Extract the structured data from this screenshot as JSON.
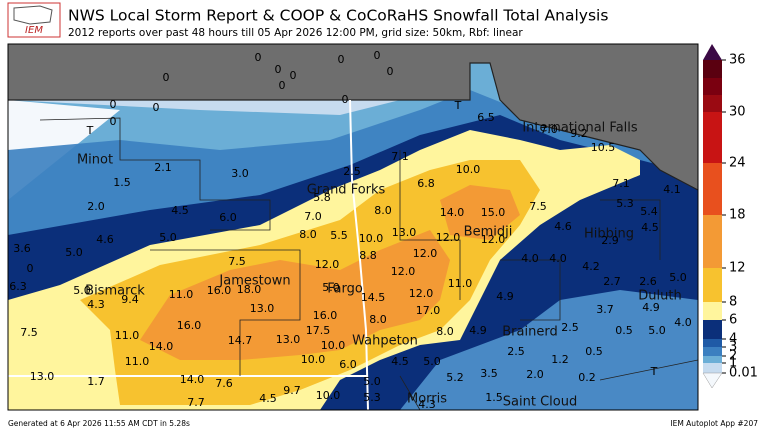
{
  "header": {
    "logo": "IEM",
    "title": "NWS Local Storm Report & COOP & CoCoRaHS Snowfall Total Analysis",
    "subtitle": "2012 reports over past 48 hours till 05 Apr 2026 12:00 PM, grid size: 50km, Rbf: linear"
  },
  "map": {
    "cities": [
      "Minot",
      "Grand Forks",
      "International Falls",
      "Bemidji",
      "Hibbing",
      "Bismarck",
      "Jamestown",
      "Fargo",
      "Duluth",
      "Wahpeton",
      "Brainerd",
      "Saint Cloud",
      "Morris"
    ],
    "stations": [
      "0",
      "0",
      "0",
      "0",
      "0",
      "0",
      "0",
      "0",
      "0",
      "0",
      "0",
      "0",
      "T",
      "T",
      "6.5",
      "7.0",
      "9.2",
      "10.5",
      "7.1",
      "10.0",
      "7.1",
      "4.1",
      "2.1",
      "1.5",
      "2.5",
      "6.8",
      "3.0",
      "5.8",
      "8.0",
      "14.0",
      "15.0",
      "7.5",
      "5.3",
      "5.4",
      "4.5",
      "4.6",
      "2.9",
      "2.0",
      "4.5",
      "6.0",
      "7.0",
      "13.0",
      "12.0",
      "12.0",
      "4.6",
      "5.0",
      "8.0",
      "5.5",
      "10.0",
      "3.6",
      "5.0",
      "8.8",
      "12.0",
      "4.0",
      "4.0",
      "4.2",
      "7.5",
      "12.0",
      "12.0",
      "0",
      "6.3",
      "2.7",
      "2.6",
      "5.0",
      "5.0",
      "9.4",
      "11.0",
      "16.0",
      "18.0",
      "5.0",
      "14.5",
      "12.0",
      "11.0",
      "4.9",
      "4.3",
      "13.0",
      "4.9",
      "16.0",
      "17.0",
      "3.7",
      "4.0",
      "7.5",
      "11.0",
      "16.0",
      "17.5",
      "8.0",
      "14.7",
      "13.0",
      "10.0",
      "8.0",
      "4.9",
      "2.5",
      "0.5",
      "5.0",
      "14.0",
      "2.5",
      "1.2",
      "0.5",
      "11.0",
      "10.0",
      "6.0",
      "4.5",
      "5.0",
      "13.0",
      "5.0",
      "5.2",
      "3.5",
      "2.0",
      "0.2",
      "T",
      "1.7",
      "14.0",
      "7.6",
      "9.7",
      "10.0",
      "5.3",
      "1.5",
      "7.7",
      "4.5",
      "4.3"
    ]
  },
  "colorbar": {
    "ticks": [
      36,
      30,
      24,
      18,
      12,
      8,
      6,
      4,
      3,
      2,
      1,
      0.01
    ]
  },
  "footer": {
    "left": "Generated at 6 Apr 2026 11:55 AM CDT in 5.28s",
    "right": "IEM Autoplot App #207"
  }
}
